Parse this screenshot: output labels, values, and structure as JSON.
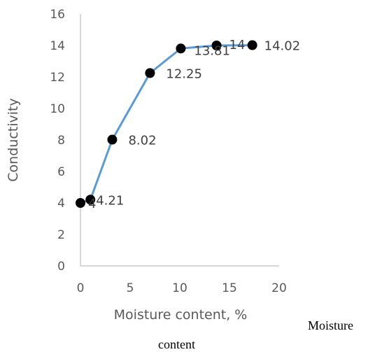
{
  "chart_data": {
    "type": "line",
    "xlabel": "Moisture content, %",
    "ylabel": "Conductivity",
    "xlim": [
      0,
      20
    ],
    "ylim": [
      0,
      16
    ],
    "xticks": [
      0,
      5,
      10,
      15,
      20
    ],
    "yticks": [
      0,
      2,
      4,
      6,
      8,
      10,
      12,
      14,
      16
    ],
    "grid": false,
    "line_color": "#5b9bd5",
    "marker_color": "#000000",
    "series": [
      {
        "x": [
          0,
          1,
          3.2,
          7,
          10.1,
          13.7,
          17.3
        ],
        "y": [
          4,
          4.21,
          8.02,
          12.25,
          13.81,
          14,
          14.02
        ],
        "labels": [
          "4",
          "4.21",
          "8.02",
          "12.25",
          "13.81",
          "14",
          "14.02"
        ]
      }
    ]
  },
  "caption": {
    "line1": "Moisture",
    "line2": "content"
  }
}
